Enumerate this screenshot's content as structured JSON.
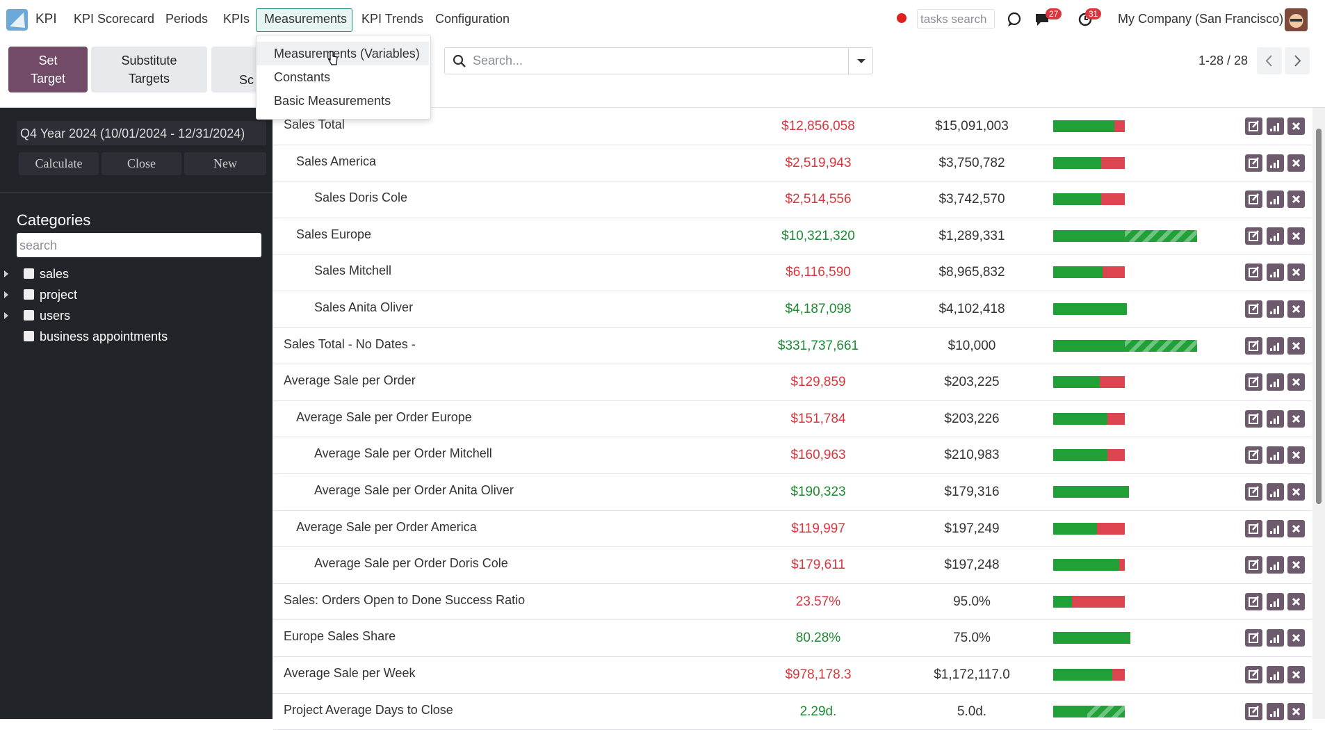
{
  "nav": {
    "brand": "KPI",
    "menu": [
      "KPI Scorecard",
      "Periods",
      "KPIs",
      "Measurements",
      "KPI Trends",
      "Configuration"
    ],
    "tasks_search_placeholder": "tasks search",
    "chat_badge": "27",
    "activity_badge": "31",
    "company": "My Company (San Francisco)"
  },
  "dropdown": [
    "Measurements (Variables)",
    "Constants",
    "Basic Measurements"
  ],
  "actions": [
    "Set Target",
    "Substitute Targets",
    "Sc"
  ],
  "search_placeholder": "Search...",
  "pager": "1-28 / 28",
  "sidebar": {
    "period": "Q4 Year 2024 (10/01/2024 - 12/31/2024)",
    "buttons": [
      "Calculate",
      "Close",
      "New"
    ],
    "categories_title": "Categories",
    "search_placeholder": "search",
    "categories": [
      "sales",
      "project",
      "users",
      "business appointments"
    ]
  },
  "table": {
    "rows": [
      {
        "name": "Sales Total",
        "actual": "$12,856,058",
        "target": "$15,091,003",
        "color": "#d9363e"
      },
      {
        "name": "Sales America",
        "actual": "$2,519,943",
        "target": "$3,750,782",
        "color": "#d9363e"
      },
      {
        "name": "Sales Doris Cole",
        "actual": "$2,514,556",
        "target": "$3,742,570",
        "color": "#d9363e"
      },
      {
        "name": "Sales Europe",
        "actual": "$10,321,320",
        "target": "$1,289,331",
        "color": "#1e8a34"
      },
      {
        "name": "Sales Mitchell",
        "actual": "$6,116,590",
        "target": "$8,965,832",
        "color": "#d9363e"
      },
      {
        "name": "Sales Anita Oliver",
        "actual": "$4,187,098",
        "target": "$4,102,418",
        "color": "#1e8a34"
      },
      {
        "name": "Sales Total - No Dates -",
        "actual": "$331,737,661",
        "target": "$10,000",
        "color": "#1e8a34"
      },
      {
        "name": "Average Sale per Order",
        "actual": "$129,859",
        "target": "$203,225",
        "color": "#d9363e"
      },
      {
        "name": "Average Sale per Order Europe",
        "actual": "$151,784",
        "target": "$203,226",
        "color": "#d9363e"
      },
      {
        "name": "Average Sale per Order Mitchell",
        "actual": "$160,963",
        "target": "$210,983",
        "color": "#d9363e"
      },
      {
        "name": "Average Sale per Order Anita Oliver",
        "actual": "$190,323",
        "target": "$179,316",
        "color": "#1e8a34"
      },
      {
        "name": "Average Sale per Order America",
        "actual": "$119,997",
        "target": "$197,249",
        "color": "#d9363e"
      },
      {
        "name": "Average Sale per Order Doris Cole",
        "actual": "$179,611",
        "target": "$197,248",
        "color": "#d9363e"
      },
      {
        "name": "Sales: Orders Open to Done Success Ratio",
        "actual": "23.57%",
        "target": "95.0%",
        "color": "#d9363e"
      },
      {
        "name": "Europe Sales Share",
        "actual": "80.28%",
        "target": "75.0%",
        "color": "#1e8a34"
      },
      {
        "name": "Average Sale per Week",
        "actual": "$978,178.3",
        "target": "$1,172,117.0",
        "color": "#d9363e"
      },
      {
        "name": "Project Average Days to Close",
        "actual": "2.29d.",
        "target": "5.0d.",
        "color": "#1e8a34"
      }
    ]
  }
}
